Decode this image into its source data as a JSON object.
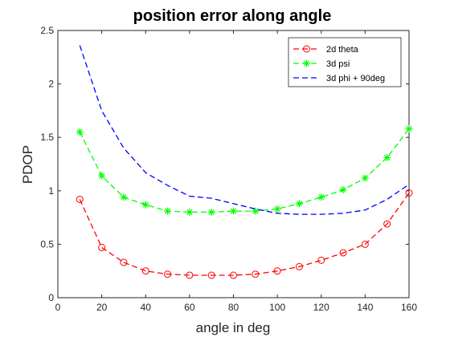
{
  "chart_data": {
    "type": "line",
    "title": "position error along angle",
    "xlabel": "angle in deg",
    "ylabel": "PDOP",
    "xlim": [
      0,
      160
    ],
    "ylim": [
      0,
      2.5
    ],
    "xticks": [
      0,
      20,
      40,
      60,
      80,
      100,
      120,
      140,
      160
    ],
    "yticks": [
      0,
      0.5,
      1,
      1.5,
      2,
      2.5
    ],
    "xtick_labels": [
      "0",
      "20",
      "40",
      "60",
      "80",
      "100",
      "120",
      "140",
      "160"
    ],
    "ytick_labels": [
      "0",
      "0.5",
      "1",
      "1.5",
      "2",
      "2.5"
    ],
    "grid": false,
    "legend_position": "top-right",
    "x": [
      10,
      20,
      30,
      40,
      50,
      60,
      70,
      80,
      90,
      100,
      110,
      120,
      130,
      140,
      150,
      160
    ],
    "series": [
      {
        "name": "2d theta",
        "color": "#ff0000",
        "line_style": "dashed",
        "marker": "circle",
        "values": [
          0.92,
          0.47,
          0.33,
          0.25,
          0.22,
          0.21,
          0.21,
          0.21,
          0.22,
          0.25,
          0.29,
          0.35,
          0.42,
          0.5,
          0.69,
          0.98
        ]
      },
      {
        "name": "3d psi",
        "color": "#00ff00",
        "line_style": "dashed",
        "marker": "asterisk",
        "values": [
          1.55,
          1.14,
          0.94,
          0.87,
          0.81,
          0.8,
          0.8,
          0.81,
          0.81,
          0.83,
          0.88,
          0.94,
          1.01,
          1.12,
          1.31,
          1.58
        ]
      },
      {
        "name": "3d phi + 90deg",
        "color": "#0000ff",
        "line_style": "dashed",
        "marker": "none",
        "values": [
          2.36,
          1.75,
          1.4,
          1.17,
          1.05,
          0.95,
          0.93,
          0.88,
          0.83,
          0.79,
          0.78,
          0.78,
          0.79,
          0.82,
          0.92,
          1.06
        ]
      }
    ]
  }
}
